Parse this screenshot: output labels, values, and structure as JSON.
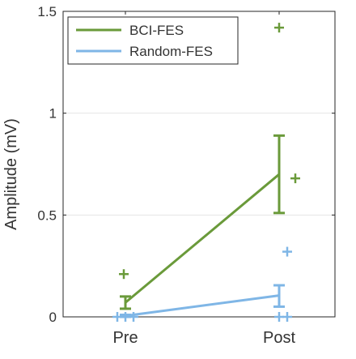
{
  "chart_data": {
    "type": "line",
    "title": "",
    "xlabel": "",
    "ylabel": "Amplitude (mV)",
    "categories": [
      "Pre",
      "Post"
    ],
    "ylim": [
      0,
      1.5
    ],
    "yticks": [
      0,
      0.5,
      1,
      1.5
    ],
    "ytick_labels": [
      "0",
      "0.5",
      "1",
      "1.5"
    ],
    "grid": true,
    "legend_position": "top-left",
    "series": [
      {
        "name": "BCI-FES",
        "color": "#6a9a3a",
        "means": [
          0.07,
          0.7
        ],
        "error_low": [
          0.04,
          0.51
        ],
        "error_high": [
          0.1,
          0.89
        ],
        "outliers": [
          {
            "x": "Pre",
            "y": 0.21
          },
          {
            "x": "Post",
            "y": 1.42
          },
          {
            "x": "Post",
            "y": 0.68
          }
        ]
      },
      {
        "name": "Random-FES",
        "color": "#7fb6e6",
        "means": [
          0.005,
          0.105
        ],
        "error_low": [
          0.0,
          0.05
        ],
        "error_high": [
          0.01,
          0.155
        ],
        "outliers": [
          {
            "x": "Pre",
            "y": 0.0
          },
          {
            "x": "Pre",
            "y": 0.0
          },
          {
            "x": "Pre",
            "y": 0.0
          },
          {
            "x": "Post",
            "y": 0.32
          },
          {
            "x": "Post",
            "y": 0.0
          },
          {
            "x": "Post",
            "y": 0.0
          }
        ]
      }
    ]
  }
}
